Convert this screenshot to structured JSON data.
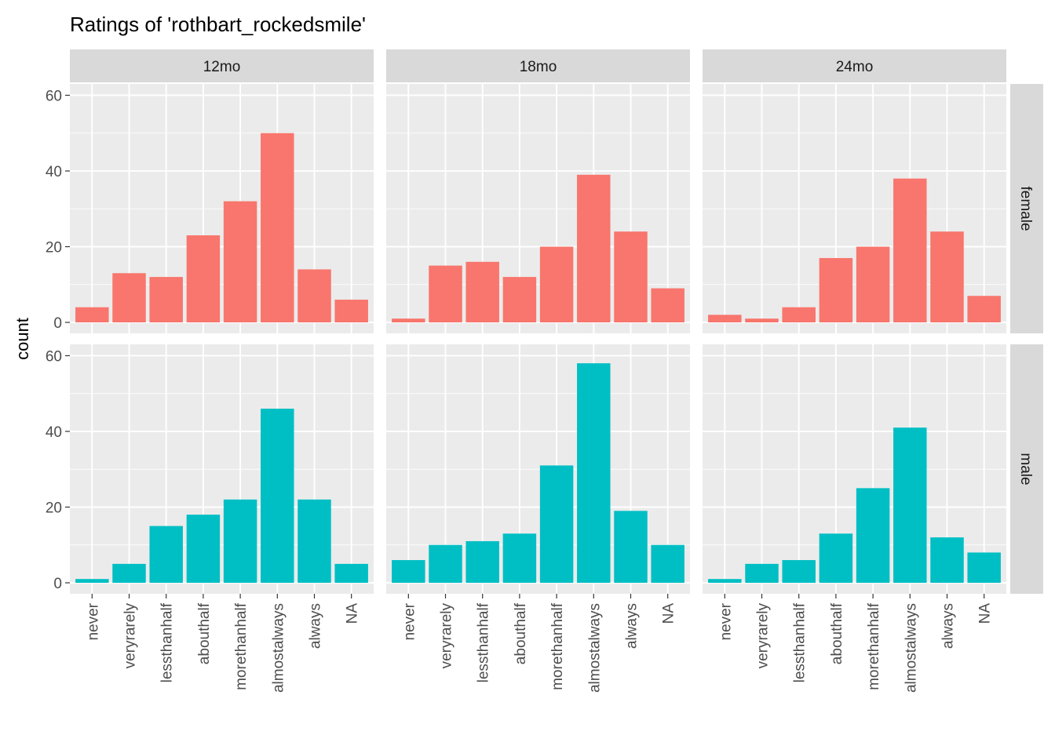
{
  "chart_data": {
    "type": "bar",
    "title": "Ratings of 'rothbart_rockedsmile'",
    "xlabel": "",
    "ylabel": "count",
    "ylim": [
      0,
      60
    ],
    "y_ticks": [
      0,
      20,
      40,
      60
    ],
    "grid": true,
    "categories": [
      "never",
      "veryrarely",
      "lessthanhalf",
      "abouthalf",
      "morethanhalf",
      "almostalways",
      "always",
      "NA"
    ],
    "facet_columns": [
      "12mo",
      "18mo",
      "24mo"
    ],
    "facet_rows": [
      "female",
      "male"
    ],
    "colors": {
      "female": "#F8766D",
      "male": "#00BFC4",
      "panel": "#EBEBEB",
      "strip": "#D9D9D9",
      "grid": "#FFFFFF"
    },
    "panels": [
      {
        "column": "12mo",
        "row": "female",
        "values": [
          4,
          13,
          12,
          23,
          32,
          50,
          14,
          6
        ]
      },
      {
        "column": "18mo",
        "row": "female",
        "values": [
          1,
          15,
          16,
          12,
          20,
          39,
          24,
          9
        ]
      },
      {
        "column": "24mo",
        "row": "female",
        "values": [
          2,
          1,
          4,
          17,
          20,
          38,
          24,
          7
        ]
      },
      {
        "column": "12mo",
        "row": "male",
        "values": [
          1,
          5,
          15,
          18,
          22,
          46,
          22,
          5
        ]
      },
      {
        "column": "18mo",
        "row": "male",
        "values": [
          6,
          10,
          11,
          13,
          31,
          58,
          19,
          10
        ]
      },
      {
        "column": "24mo",
        "row": "male",
        "values": [
          1,
          5,
          6,
          13,
          25,
          41,
          12,
          8
        ]
      }
    ]
  }
}
